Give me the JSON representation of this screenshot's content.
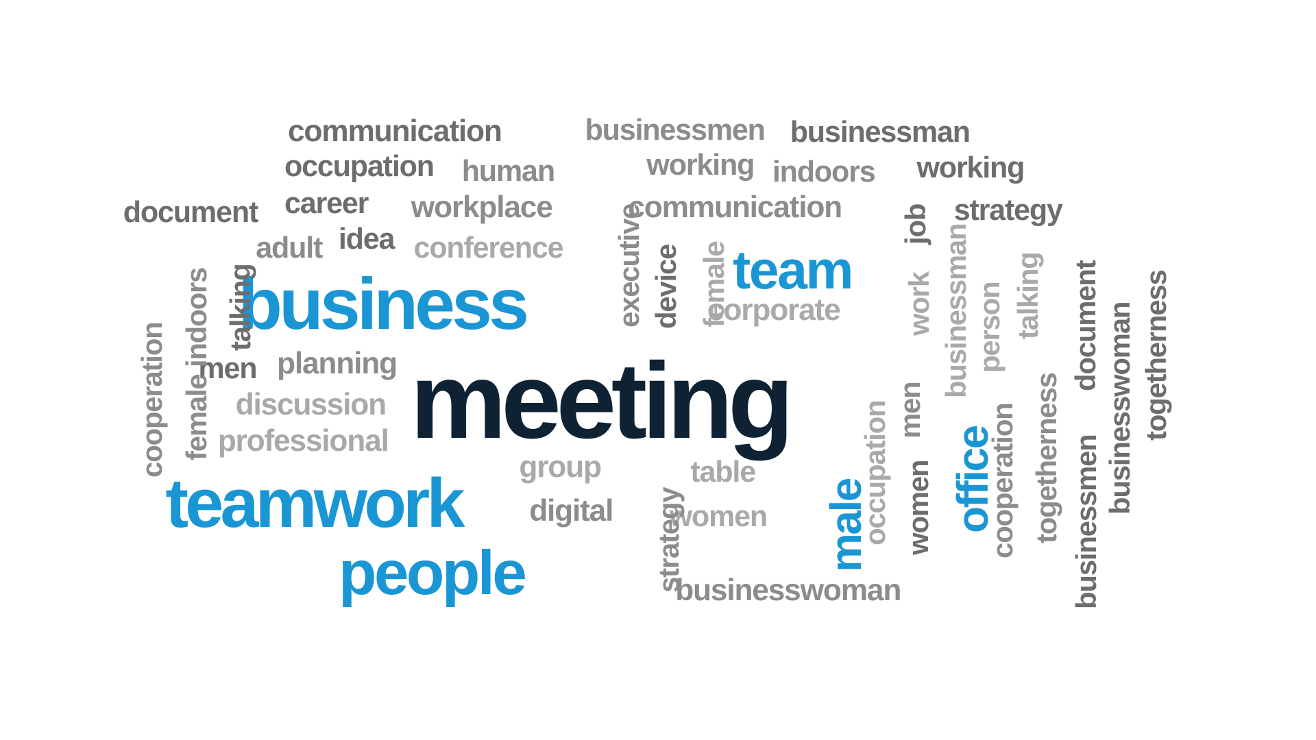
{
  "palette": {
    "dark": "#0f2233",
    "blue": "#1a96d4",
    "grey_dark": "#6d6d6d",
    "grey_mid": "#8c8c8c",
    "grey_light": "#a9a9a9",
    "background": "#ffffff"
  },
  "words": [
    {
      "text": "meeting",
      "color": "dark",
      "orientation": "horizontal"
    },
    {
      "text": "business",
      "color": "blue",
      "orientation": "horizontal"
    },
    {
      "text": "teamwork",
      "color": "blue",
      "orientation": "horizontal"
    },
    {
      "text": "people",
      "color": "blue",
      "orientation": "horizontal"
    },
    {
      "text": "team",
      "color": "blue",
      "orientation": "horizontal"
    },
    {
      "text": "office",
      "color": "blue",
      "orientation": "vertical"
    },
    {
      "text": "male",
      "color": "blue",
      "orientation": "vertical"
    },
    {
      "text": "communication",
      "color": "grey_dark",
      "orientation": "horizontal"
    },
    {
      "text": "occupation",
      "color": "grey_dark",
      "orientation": "horizontal"
    },
    {
      "text": "human",
      "color": "grey_mid",
      "orientation": "horizontal"
    },
    {
      "text": "document",
      "color": "grey_dark",
      "orientation": "horizontal"
    },
    {
      "text": "career",
      "color": "grey_dark",
      "orientation": "horizontal"
    },
    {
      "text": "workplace",
      "color": "grey_mid",
      "orientation": "horizontal"
    },
    {
      "text": "adult",
      "color": "grey_mid",
      "orientation": "horizontal"
    },
    {
      "text": "idea",
      "color": "grey_dark",
      "orientation": "horizontal"
    },
    {
      "text": "conference",
      "color": "grey_light",
      "orientation": "horizontal"
    },
    {
      "text": "businessmen",
      "color": "grey_mid",
      "orientation": "horizontal"
    },
    {
      "text": "businessman",
      "color": "grey_dark",
      "orientation": "horizontal"
    },
    {
      "text": "working",
      "color": "grey_mid",
      "orientation": "horizontal"
    },
    {
      "text": "indoors",
      "color": "grey_mid",
      "orientation": "horizontal"
    },
    {
      "text": "working",
      "color": "grey_dark",
      "orientation": "horizontal"
    },
    {
      "text": "communication",
      "color": "grey_mid",
      "orientation": "horizontal"
    },
    {
      "text": "strategy",
      "color": "grey_dark",
      "orientation": "horizontal"
    },
    {
      "text": "corporate",
      "color": "grey_light",
      "orientation": "horizontal"
    },
    {
      "text": "men",
      "color": "grey_dark",
      "orientation": "horizontal"
    },
    {
      "text": "planning",
      "color": "grey_mid",
      "orientation": "horizontal"
    },
    {
      "text": "discussion",
      "color": "grey_light",
      "orientation": "horizontal"
    },
    {
      "text": "professional",
      "color": "grey_light",
      "orientation": "horizontal"
    },
    {
      "text": "group",
      "color": "grey_light",
      "orientation": "horizontal"
    },
    {
      "text": "digital",
      "color": "grey_mid",
      "orientation": "horizontal"
    },
    {
      "text": "table",
      "color": "grey_light",
      "orientation": "horizontal"
    },
    {
      "text": "women",
      "color": "grey_light",
      "orientation": "horizontal"
    },
    {
      "text": "businesswoman",
      "color": "grey_mid",
      "orientation": "horizontal"
    },
    {
      "text": "cooperation",
      "color": "grey_mid",
      "orientation": "vertical"
    },
    {
      "text": "female indoors",
      "color": "grey_mid",
      "orientation": "vertical"
    },
    {
      "text": "talking",
      "color": "grey_dark",
      "orientation": "vertical"
    },
    {
      "text": "executive",
      "color": "grey_mid",
      "orientation": "vertical"
    },
    {
      "text": "device",
      "color": "grey_dark",
      "orientation": "vertical"
    },
    {
      "text": "female",
      "color": "grey_light",
      "orientation": "vertical"
    },
    {
      "text": "job",
      "color": "grey_dark",
      "orientation": "vertical"
    },
    {
      "text": "work",
      "color": "grey_light",
      "orientation": "vertical"
    },
    {
      "text": "businessman",
      "color": "grey_light",
      "orientation": "vertical"
    },
    {
      "text": "person",
      "color": "grey_light",
      "orientation": "vertical"
    },
    {
      "text": "talking",
      "color": "grey_light",
      "orientation": "vertical"
    },
    {
      "text": "document",
      "color": "grey_dark",
      "orientation": "vertical"
    },
    {
      "text": "togetherness",
      "color": "grey_dark",
      "orientation": "vertical"
    },
    {
      "text": "occupation",
      "color": "grey_light",
      "orientation": "vertical"
    },
    {
      "text": "men",
      "color": "grey_mid",
      "orientation": "vertical"
    },
    {
      "text": "women",
      "color": "grey_dark",
      "orientation": "vertical"
    },
    {
      "text": "cooperation",
      "color": "grey_mid",
      "orientation": "vertical"
    },
    {
      "text": "togetherness",
      "color": "grey_mid",
      "orientation": "vertical"
    },
    {
      "text": "businessmen",
      "color": "grey_dark",
      "orientation": "vertical"
    },
    {
      "text": "businesswoman",
      "color": "grey_dark",
      "orientation": "vertical"
    },
    {
      "text": "strategy",
      "color": "grey_mid",
      "orientation": "vertical"
    }
  ]
}
